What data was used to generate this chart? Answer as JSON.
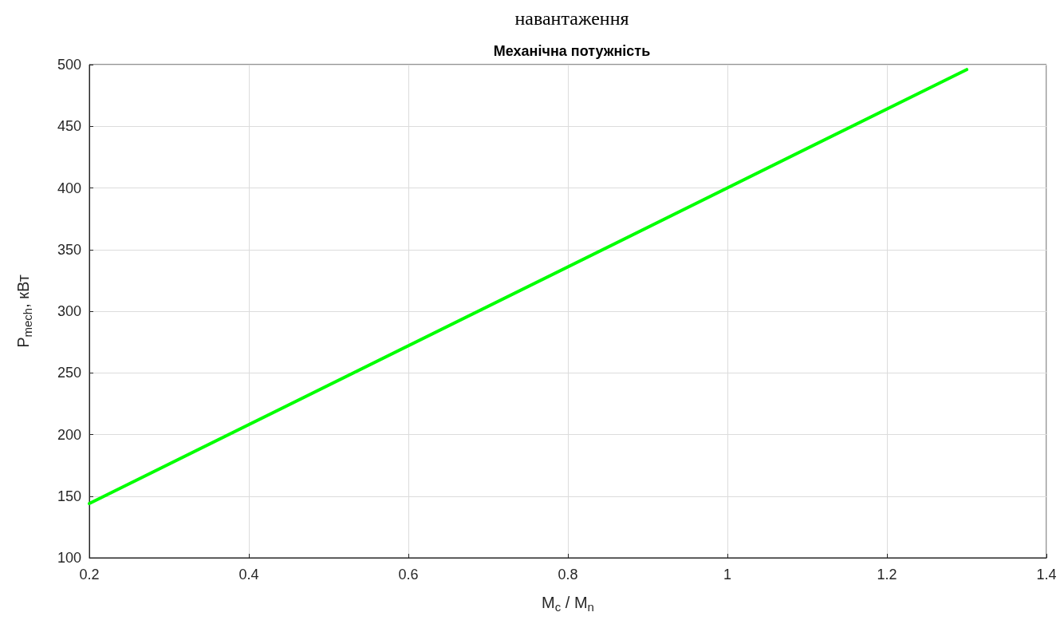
{
  "chart_data": {
    "type": "line",
    "title": "Механічна потужність",
    "xlabel": "M$_{c}$ / M$_{n}$",
    "ylabel": "P$_{mech}$, кВт",
    "annotations": [
      "навантаження"
    ],
    "x": [
      0.2,
      1.3
    ],
    "series": [
      {
        "color": "#00ff00",
        "values": [
          144,
          496
        ]
      }
    ],
    "xlim": [
      0.2,
      1.4
    ],
    "xticks": [
      0.2,
      0.4,
      0.6,
      0.8,
      1,
      1.2,
      1.4
    ],
    "ylim": [
      100,
      500
    ],
    "yticks": [
      100,
      150,
      200,
      250,
      300,
      350,
      400,
      450,
      500
    ],
    "grid": true,
    "marker": "none",
    "line_style": "solid"
  }
}
